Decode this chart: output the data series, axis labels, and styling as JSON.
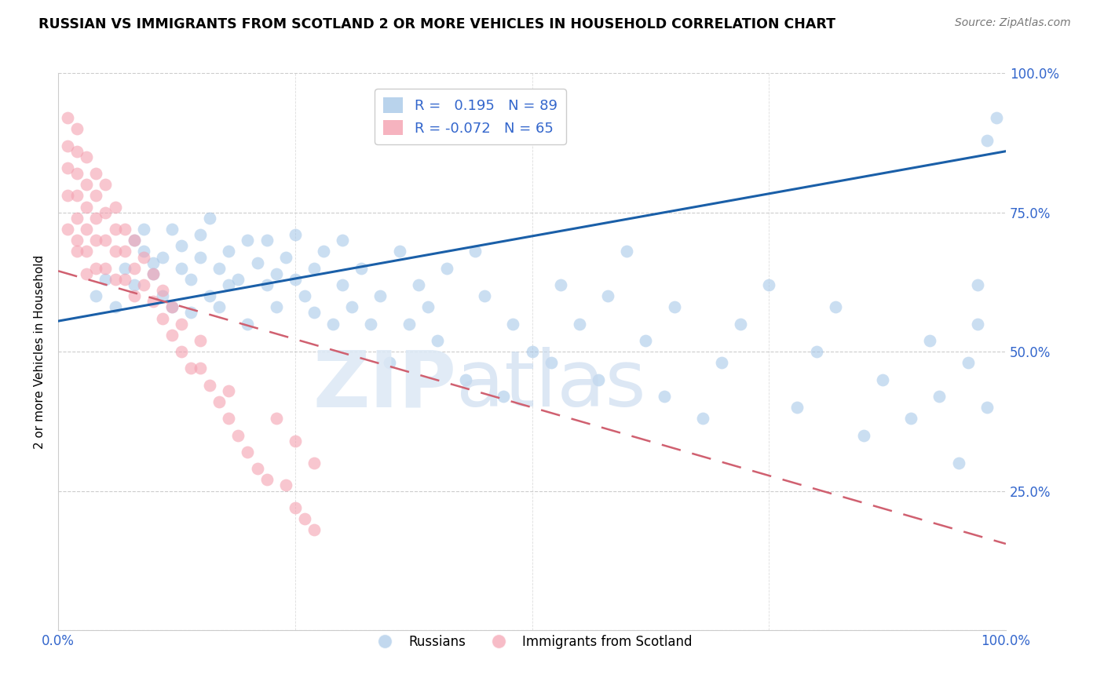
{
  "title": "RUSSIAN VS IMMIGRANTS FROM SCOTLAND 2 OR MORE VEHICLES IN HOUSEHOLD CORRELATION CHART",
  "source": "Source: ZipAtlas.com",
  "ylabel": "2 or more Vehicles in Household",
  "russian_R": 0.195,
  "russian_N": 89,
  "scotland_R": -0.072,
  "scotland_N": 65,
  "blue_color": "#a8c8e8",
  "pink_color": "#f4a0b0",
  "line_blue": "#1a5fa8",
  "line_pink": "#d06070",
  "xlim": [
    0.0,
    1.0
  ],
  "ylim": [
    0.0,
    1.0
  ],
  "blue_line_x0": 0.0,
  "blue_line_y0": 0.555,
  "blue_line_x1": 1.0,
  "blue_line_y1": 0.86,
  "pink_line_x0": 0.0,
  "pink_line_y0": 0.645,
  "pink_line_x1": 1.0,
  "pink_line_y1": 0.155,
  "russian_x": [
    0.04,
    0.05,
    0.06,
    0.07,
    0.08,
    0.08,
    0.09,
    0.09,
    0.1,
    0.1,
    0.11,
    0.11,
    0.12,
    0.12,
    0.13,
    0.13,
    0.14,
    0.14,
    0.15,
    0.15,
    0.16,
    0.16,
    0.17,
    0.17,
    0.18,
    0.18,
    0.19,
    0.2,
    0.2,
    0.21,
    0.22,
    0.22,
    0.23,
    0.23,
    0.24,
    0.25,
    0.25,
    0.26,
    0.27,
    0.27,
    0.28,
    0.29,
    0.3,
    0.3,
    0.31,
    0.32,
    0.33,
    0.34,
    0.35,
    0.36,
    0.37,
    0.38,
    0.39,
    0.4,
    0.41,
    0.43,
    0.44,
    0.45,
    0.47,
    0.48,
    0.5,
    0.52,
    0.53,
    0.55,
    0.57,
    0.58,
    0.6,
    0.62,
    0.64,
    0.65,
    0.68,
    0.7,
    0.72,
    0.75,
    0.78,
    0.8,
    0.82,
    0.85,
    0.87,
    0.9,
    0.92,
    0.93,
    0.95,
    0.96,
    0.97,
    0.97,
    0.98,
    0.98,
    0.99
  ],
  "russian_y": [
    0.6,
    0.63,
    0.58,
    0.65,
    0.7,
    0.62,
    0.68,
    0.72,
    0.64,
    0.66,
    0.6,
    0.67,
    0.72,
    0.58,
    0.65,
    0.69,
    0.63,
    0.57,
    0.67,
    0.71,
    0.6,
    0.74,
    0.65,
    0.58,
    0.68,
    0.62,
    0.63,
    0.7,
    0.55,
    0.66,
    0.62,
    0.7,
    0.64,
    0.58,
    0.67,
    0.63,
    0.71,
    0.6,
    0.65,
    0.57,
    0.68,
    0.55,
    0.62,
    0.7,
    0.58,
    0.65,
    0.55,
    0.6,
    0.48,
    0.68,
    0.55,
    0.62,
    0.58,
    0.52,
    0.65,
    0.45,
    0.68,
    0.6,
    0.42,
    0.55,
    0.5,
    0.48,
    0.62,
    0.55,
    0.45,
    0.6,
    0.68,
    0.52,
    0.42,
    0.58,
    0.38,
    0.48,
    0.55,
    0.62,
    0.4,
    0.5,
    0.58,
    0.35,
    0.45,
    0.38,
    0.52,
    0.42,
    0.3,
    0.48,
    0.55,
    0.62,
    0.4,
    0.88,
    0.92
  ],
  "scotland_x": [
    0.01,
    0.01,
    0.01,
    0.01,
    0.01,
    0.02,
    0.02,
    0.02,
    0.02,
    0.02,
    0.02,
    0.02,
    0.03,
    0.03,
    0.03,
    0.03,
    0.03,
    0.03,
    0.04,
    0.04,
    0.04,
    0.04,
    0.04,
    0.05,
    0.05,
    0.05,
    0.05,
    0.06,
    0.06,
    0.06,
    0.06,
    0.07,
    0.07,
    0.07,
    0.08,
    0.08,
    0.08,
    0.09,
    0.09,
    0.1,
    0.1,
    0.11,
    0.11,
    0.12,
    0.12,
    0.13,
    0.13,
    0.14,
    0.15,
    0.15,
    0.16,
    0.17,
    0.18,
    0.18,
    0.19,
    0.2,
    0.21,
    0.22,
    0.23,
    0.24,
    0.25,
    0.25,
    0.26,
    0.27,
    0.27
  ],
  "scotland_y": [
    0.92,
    0.87,
    0.83,
    0.78,
    0.72,
    0.9,
    0.86,
    0.82,
    0.78,
    0.74,
    0.7,
    0.68,
    0.85,
    0.8,
    0.76,
    0.72,
    0.68,
    0.64,
    0.82,
    0.78,
    0.74,
    0.7,
    0.65,
    0.8,
    0.75,
    0.7,
    0.65,
    0.76,
    0.72,
    0.68,
    0.63,
    0.72,
    0.68,
    0.63,
    0.7,
    0.65,
    0.6,
    0.67,
    0.62,
    0.64,
    0.59,
    0.61,
    0.56,
    0.58,
    0.53,
    0.55,
    0.5,
    0.47,
    0.52,
    0.47,
    0.44,
    0.41,
    0.38,
    0.43,
    0.35,
    0.32,
    0.29,
    0.27,
    0.38,
    0.26,
    0.22,
    0.34,
    0.2,
    0.18,
    0.3
  ]
}
